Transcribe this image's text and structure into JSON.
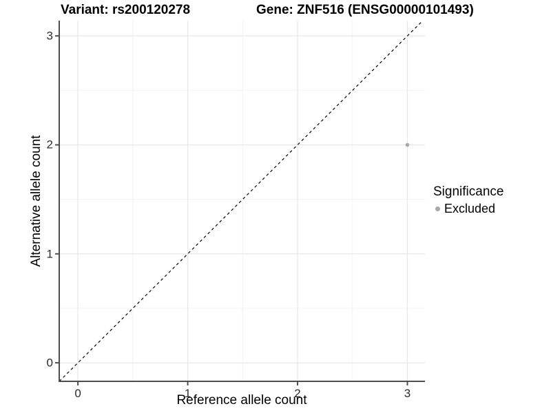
{
  "chart_data": {
    "type": "scatter",
    "titles": {
      "variant": "Variant: rs200120278",
      "gene": "Gene: ZNF516 (ENSG00000101493)"
    },
    "xlabel": "Reference allele count",
    "ylabel": "Alternative allele count",
    "x_ticks": [
      "0",
      "1",
      "2",
      "3"
    ],
    "y_ticks": [
      "0",
      "1",
      "2",
      "3"
    ],
    "x_tick_values": [
      0,
      1,
      2,
      3
    ],
    "y_tick_values": [
      0,
      1,
      2,
      3
    ],
    "minor_tick_values": [
      0.5,
      1.5,
      2.5
    ],
    "xlim": [
      -0.17,
      3.16
    ],
    "ylim": [
      -0.17,
      3.14
    ],
    "grid": {
      "major": true,
      "minor": true,
      "major_color": "#e6e6e6",
      "minor_color": "#f2f2f2"
    },
    "identity_line": {
      "shown": true,
      "style": "dashed",
      "color": "#000000"
    },
    "axis_color": "#4d4d4d",
    "series": [
      {
        "name": "Excluded",
        "color": "#a9a9a9",
        "points": [
          {
            "x": 3,
            "y": 2
          }
        ]
      }
    ],
    "legend": {
      "title": "Significance",
      "position": "right",
      "items": [
        {
          "label": "Excluded",
          "color": "#a9a9a9"
        }
      ]
    }
  }
}
